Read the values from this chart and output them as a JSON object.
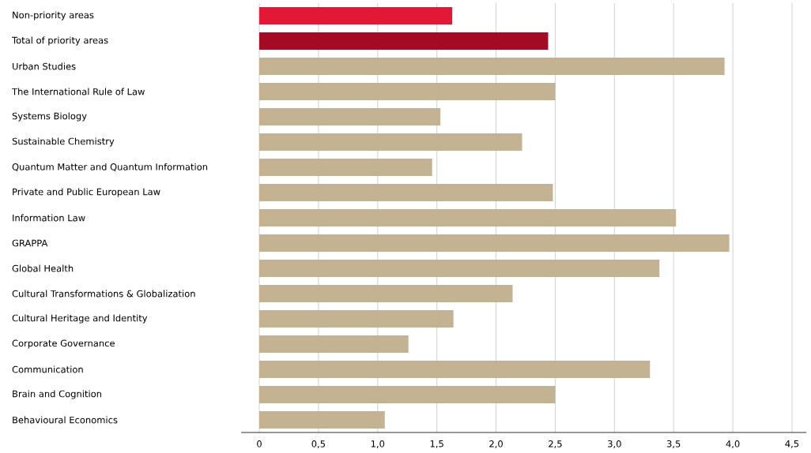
{
  "chart_data": {
    "type": "bar",
    "orientation": "horizontal",
    "categories": [
      "Non-priority areas",
      "Total of priority areas",
      "Urban Studies",
      "The International Rule of Law",
      "Systems Biology",
      "Sustainable Chemistry",
      "Quantum Matter and Quantum Information",
      "Private and Public European Law",
      "Information Law",
      "GRAPPA",
      "Global Health",
      "Cultural Transformations & Globalization",
      "Cultural Heritage and Identity",
      "Corporate Governance",
      "Communication",
      "Brain and Cognition",
      "Behavioural Economics"
    ],
    "values": [
      1.63,
      2.44,
      3.93,
      2.5,
      1.53,
      2.22,
      1.46,
      2.48,
      3.52,
      3.97,
      3.38,
      2.14,
      1.64,
      1.26,
      3.3,
      2.5,
      1.06
    ],
    "colors": [
      "#e31837",
      "#a50a24",
      "#c4b393",
      "#c4b393",
      "#c4b393",
      "#c4b393",
      "#c4b393",
      "#c4b393",
      "#c4b393",
      "#c4b393",
      "#c4b393",
      "#c4b393",
      "#c4b393",
      "#c4b393",
      "#c4b393",
      "#c4b393",
      "#c4b393"
    ],
    "xlim": [
      0,
      4.5
    ],
    "xticks": [
      0,
      {
        "value": 0.5,
        "label": "0,5"
      },
      {
        "value": 1,
        "label": "1,0"
      },
      {
        "value": 1.5,
        "label": "1,5"
      },
      {
        "value": 2,
        "label": "2,0"
      },
      {
        "value": 2.5,
        "label": "2,5"
      },
      {
        "value": 3,
        "label": "3,0"
      },
      {
        "value": 3.5,
        "label": "3,5"
      },
      {
        "value": 4,
        "label": "4,0"
      },
      {
        "value": 4.5,
        "label": "4,5"
      }
    ],
    "grid": "x"
  }
}
